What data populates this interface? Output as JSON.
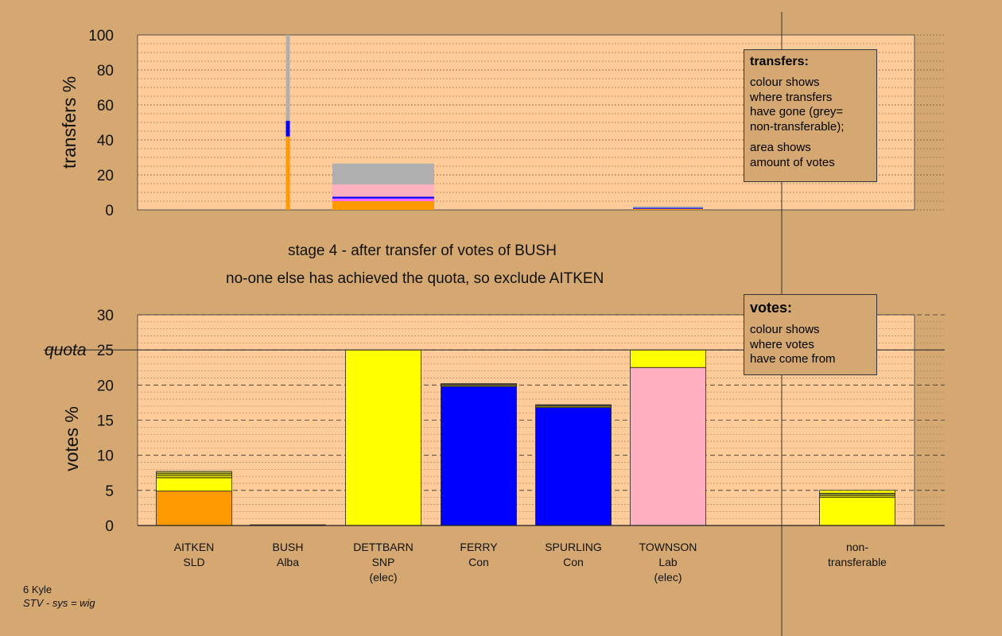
{
  "chart_data": [
    {
      "type": "bar",
      "stacked": true,
      "ylabel": "transfers %",
      "ylim": [
        0,
        100
      ],
      "yticks": [
        0,
        20,
        40,
        60,
        80,
        100
      ],
      "grid": "dotted",
      "bars": [
        {
          "column": "BUSH",
          "width": "thin",
          "segments": [
            {
              "color": "#ff9900",
              "value": 42
            },
            {
              "color": "#0000ff",
              "value": 9
            },
            {
              "color": "#b0b0b0",
              "value": 49
            }
          ]
        },
        {
          "column": "DETTBARN",
          "width": "wide",
          "segments": [
            {
              "color": "#ff9900",
              "value": 5
            },
            {
              "color": "#ff69ff",
              "value": 1.5
            },
            {
              "color": "#0000ff",
              "value": 1
            },
            {
              "color": "#ffb0c0",
              "value": 7
            },
            {
              "color": "#b0b0b0",
              "value": 12
            }
          ]
        },
        {
          "column": "TOWNSON",
          "width": "medium",
          "segments": [
            {
              "color": "#ff9900",
              "value": 0.6
            },
            {
              "color": "#0000ff",
              "value": 0.6
            },
            {
              "color": "#b0b0b0",
              "value": 0.8
            }
          ]
        }
      ]
    },
    {
      "type": "bar",
      "stacked": true,
      "ylabel": "votes %",
      "ylim": [
        0,
        30
      ],
      "yticks": [
        0,
        5,
        10,
        15,
        20,
        25,
        30
      ],
      "grid": "dashed",
      "quota": {
        "label": "quota",
        "value": 25
      },
      "categories": [
        {
          "name": "AITKEN",
          "party": "SLD",
          "status": ""
        },
        {
          "name": "BUSH",
          "party": "Alba",
          "status": ""
        },
        {
          "name": "DETTBARN",
          "party": "SNP",
          "status": "(elec)"
        },
        {
          "name": "FERRY",
          "party": "Con",
          "status": ""
        },
        {
          "name": "SPURLING",
          "party": "Con",
          "status": ""
        },
        {
          "name": "TOWNSON",
          "party": "Lab",
          "status": "(elec)"
        },
        {
          "name": "",
          "party": "",
          "status": ""
        },
        {
          "name": "non-",
          "party": "transferable",
          "status": ""
        }
      ],
      "stacks": [
        [
          {
            "color": "#ff9900",
            "value": 4.9
          },
          {
            "color": "#ffff00",
            "value": 1.9
          },
          {
            "color": "#c8c800",
            "value": 0.4
          },
          {
            "color": "#ffff00",
            "value": 0.2
          },
          {
            "color": "#b0b040",
            "value": 0.3
          }
        ],
        [
          {
            "color": "#777777",
            "value": 0.1
          }
        ],
        [
          {
            "color": "#ffff00",
            "value": 25
          }
        ],
        [
          {
            "color": "#0000ff",
            "value": 19.8
          },
          {
            "color": "#c8b400",
            "value": 0.2
          },
          {
            "color": "#555555",
            "value": 0.2
          }
        ],
        [
          {
            "color": "#0000ff",
            "value": 16.8
          },
          {
            "color": "#c8b400",
            "value": 0.2
          },
          {
            "color": "#555555",
            "value": 0.2
          }
        ],
        [
          {
            "color": "#ffb0c0",
            "value": 22.5
          },
          {
            "color": "#ffff00",
            "value": 2.5
          }
        ],
        [],
        [
          {
            "color": "#ffff00",
            "value": 4.0
          },
          {
            "color": "#c8c800",
            "value": 0.3
          },
          {
            "color": "#a0a030",
            "value": 0.3
          },
          {
            "color": "#ffff00",
            "value": 0.4
          }
        ]
      ]
    }
  ],
  "captions": {
    "stage": "stage 4 - after transfer of votes of BUSH",
    "action": "no-one else has achieved the quota, so exclude AITKEN"
  },
  "transfers_legend": {
    "title": "transfers:",
    "lines1": [
      "colour shows",
      "where transfers",
      "have gone (grey=",
      "non-transferable);"
    ],
    "lines2": [
      "area shows",
      "amount of votes"
    ]
  },
  "votes_legend": {
    "title": "votes:",
    "lines": [
      "colour shows",
      "where votes",
      "have come from"
    ]
  },
  "footer": {
    "constituency": "6 Kyle",
    "system": "STV - sys = wig"
  },
  "colors": {
    "background": "#d4a870",
    "plot_area": "#ffcc99"
  }
}
